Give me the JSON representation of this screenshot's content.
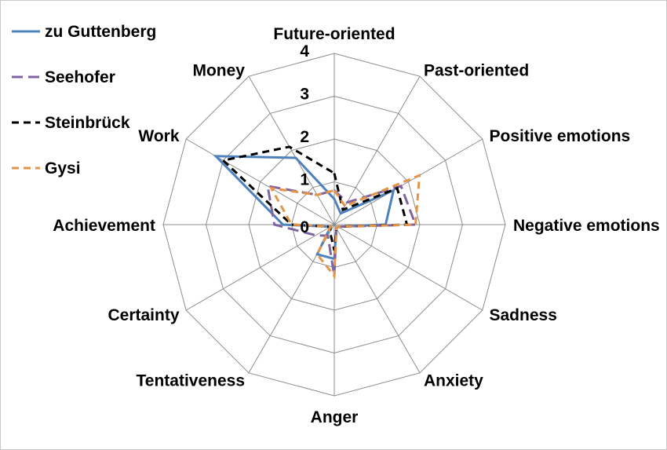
{
  "chart_data": {
    "type": "radar",
    "title": "",
    "categories": [
      "Future-oriented",
      "Past-oriented",
      "Positive emotions",
      "Negative emotions",
      "Sadness",
      "Anxiety",
      "Anger",
      "Tentativeness",
      "Certainty",
      "Achievement",
      "Work",
      "Money"
    ],
    "range": [
      0,
      4
    ],
    "ticks": [
      "0",
      "1",
      "2",
      "3",
      "4"
    ],
    "grid": true,
    "legend_position": "top-left",
    "series": [
      {
        "name": "zu Guttenberg",
        "color": "#4F81BD",
        "dash": "solid",
        "values": [
          0.6,
          0.3,
          1.6,
          1.2,
          0.1,
          0.1,
          0.8,
          0.8,
          0.1,
          1.2,
          3.2,
          1.8
        ]
      },
      {
        "name": "Seehofer",
        "color": "#8064A2",
        "dash": "longdash",
        "values": [
          0.8,
          0.6,
          1.8,
          1.9,
          0.1,
          0.1,
          1.2,
          0.3,
          0.5,
          1.4,
          1.8,
          0.8
        ]
      },
      {
        "name": "Steinbrück",
        "color": "#000000",
        "dash": "dash",
        "values": [
          1.2,
          0.4,
          1.7,
          1.7,
          0.1,
          0.1,
          0.6,
          0.2,
          0.1,
          1.0,
          3.0,
          2.1
        ]
      },
      {
        "name": "Gysi",
        "color": "#E39448",
        "dash": "dash",
        "values": [
          0.8,
          0.5,
          2.3,
          1.9,
          0.1,
          0.1,
          1.2,
          0.8,
          0.1,
          1.0,
          1.7,
          0.8
        ]
      }
    ]
  }
}
